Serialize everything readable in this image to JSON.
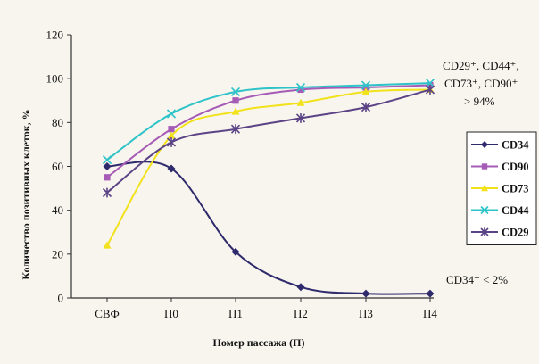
{
  "chart_data": {
    "type": "line",
    "categories": [
      "СВФ",
      "П0",
      "П1",
      "П2",
      "П3",
      "П4"
    ],
    "xlabel": "Номер пассажа (П)",
    "ylabel": "Количество позитивных клеток, %",
    "ylim": [
      0,
      120
    ],
    "yticks": [
      0,
      20,
      40,
      60,
      80,
      100,
      120
    ],
    "grid": false,
    "legend_position": "right",
    "series": [
      {
        "name": "CD34",
        "values": [
          60,
          59,
          21,
          5,
          2,
          2
        ],
        "color": "#2e2a6b",
        "marker": "diamond"
      },
      {
        "name": "CD90",
        "values": [
          55,
          77,
          90,
          95,
          96,
          97
        ],
        "color": "#a65cb6",
        "marker": "square"
      },
      {
        "name": "CD73",
        "values": [
          24,
          74,
          85,
          89,
          94,
          95
        ],
        "color": "#f2e21b",
        "marker": "triangle"
      },
      {
        "name": "CD44",
        "values": [
          63,
          84,
          94,
          96,
          97,
          98
        ],
        "color": "#2ec3c8",
        "marker": "x"
      },
      {
        "name": "CD29",
        "values": [
          48,
          71,
          77,
          82,
          87,
          95
        ],
        "color": "#5b4386",
        "marker": "star"
      }
    ],
    "annotations": {
      "top_line1": "CD29⁺, CD44⁺,",
      "top_line2": "CD73⁺, CD90⁺",
      "top_line3": "> 94%",
      "bottom": "CD34⁺ < 2%"
    }
  }
}
